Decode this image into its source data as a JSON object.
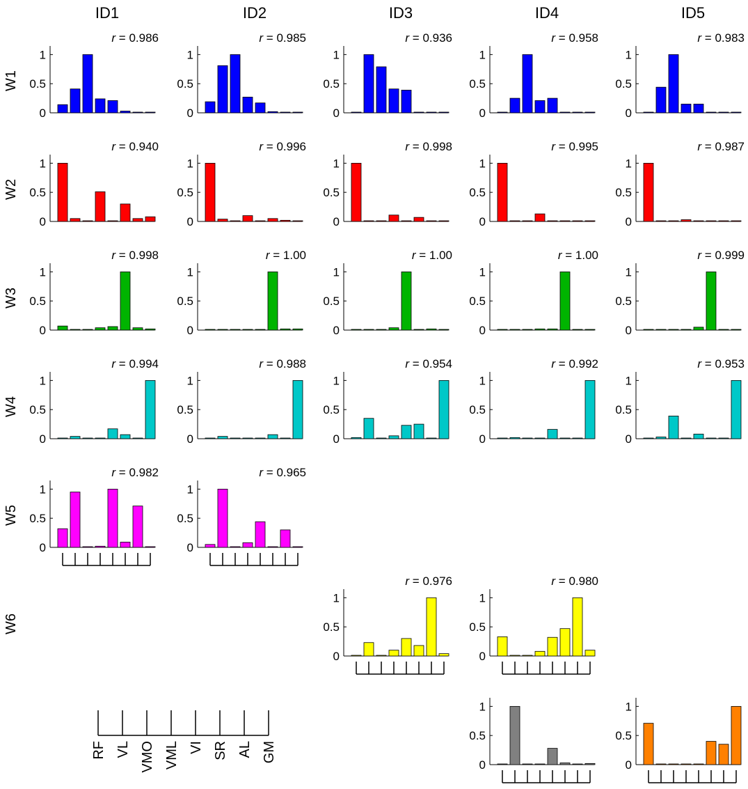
{
  "chart_data": {
    "type": "bar",
    "title": "",
    "column_labels": [
      "ID1",
      "ID2",
      "ID3",
      "ID4",
      "ID5"
    ],
    "row_labels": [
      "W1",
      "W2",
      "W3",
      "W4",
      "W5",
      "W6"
    ],
    "muscles": [
      "RF",
      "VL",
      "VMO",
      "VML",
      "VI",
      "SR",
      "AL",
      "GM"
    ],
    "r_prefix": "r",
    "ylim": [
      0,
      1.1
    ],
    "yticks": [
      "0",
      "0.5",
      "1"
    ],
    "panels": [
      {
        "row": 1,
        "col": 1,
        "r": "0.986",
        "color": "#0000ff",
        "values": [
          0.14,
          0.41,
          1.0,
          0.24,
          0.21,
          0.03,
          0.01,
          0.01
        ]
      },
      {
        "row": 1,
        "col": 2,
        "r": "0.985",
        "color": "#0000ff",
        "values": [
          0.19,
          0.81,
          1.0,
          0.27,
          0.17,
          0.02,
          0.01,
          0.01
        ]
      },
      {
        "row": 1,
        "col": 3,
        "r": "0.936",
        "color": "#0000ff",
        "values": [
          0.0,
          1.0,
          0.79,
          0.41,
          0.39,
          0.01,
          0.01,
          0.01
        ]
      },
      {
        "row": 1,
        "col": 4,
        "r": "0.958",
        "color": "#0000ff",
        "values": [
          0.01,
          0.25,
          1.0,
          0.21,
          0.25,
          0.0,
          0.0,
          0.0
        ]
      },
      {
        "row": 1,
        "col": 5,
        "r": "0.983",
        "color": "#0000ff",
        "values": [
          0.0,
          0.44,
          1.0,
          0.15,
          0.15,
          0.0,
          0.0,
          0.0
        ]
      },
      {
        "row": 2,
        "col": 1,
        "r": "0.940",
        "color": "#ff0000",
        "values": [
          1.0,
          0.05,
          0.0,
          0.51,
          0.0,
          0.3,
          0.05,
          0.08
        ]
      },
      {
        "row": 2,
        "col": 2,
        "r": "0.996",
        "color": "#ff0000",
        "values": [
          1.0,
          0.04,
          0.0,
          0.1,
          0.0,
          0.05,
          0.02,
          0.0
        ]
      },
      {
        "row": 2,
        "col": 3,
        "r": "0.998",
        "color": "#ff0000",
        "values": [
          1.0,
          0.01,
          0.0,
          0.11,
          0.0,
          0.07,
          0.0,
          0.0
        ]
      },
      {
        "row": 2,
        "col": 4,
        "r": "0.995",
        "color": "#ff0000",
        "values": [
          1.0,
          0.01,
          0.0,
          0.13,
          0.01,
          0.0,
          0.0,
          0.0
        ]
      },
      {
        "row": 2,
        "col": 5,
        "r": "0.987",
        "color": "#ff0000",
        "values": [
          1.0,
          0.0,
          0.0,
          0.03,
          0.01,
          0.0,
          0.0,
          0.0
        ]
      },
      {
        "row": 3,
        "col": 1,
        "r": "0.998",
        "color": "#00b400",
        "values": [
          0.07,
          0.0,
          0.01,
          0.04,
          0.06,
          1.0,
          0.04,
          0.02
        ]
      },
      {
        "row": 3,
        "col": 2,
        "r": "1.00",
        "color": "#00b400",
        "values": [
          0.01,
          0.0,
          0.01,
          0.01,
          0.01,
          1.0,
          0.02,
          0.02
        ]
      },
      {
        "row": 3,
        "col": 3,
        "r": "1.00",
        "color": "#00b400",
        "values": [
          0.01,
          0.0,
          0.0,
          0.04,
          1.0,
          0.0,
          0.02,
          0.0
        ]
      },
      {
        "row": 3,
        "col": 4,
        "r": "1.00",
        "color": "#00b400",
        "values": [
          0.01,
          0.0,
          0.0,
          0.02,
          0.02,
          1.0,
          0.0,
          0.01
        ]
      },
      {
        "row": 3,
        "col": 5,
        "r": "0.999",
        "color": "#00b400",
        "values": [
          0.0,
          0.0,
          0.0,
          0.0,
          0.05,
          1.0,
          0.0,
          0.0
        ]
      },
      {
        "row": 4,
        "col": 1,
        "r": "0.994",
        "color": "#00c8c8",
        "values": [
          0.0,
          0.04,
          0.0,
          0.01,
          0.17,
          0.07,
          0.0,
          1.0
        ]
      },
      {
        "row": 4,
        "col": 2,
        "r": "0.988",
        "color": "#00c8c8",
        "values": [
          0.0,
          0.04,
          0.01,
          0.0,
          0.0,
          0.07,
          0.0,
          1.0
        ]
      },
      {
        "row": 4,
        "col": 3,
        "r": "0.954",
        "color": "#00c8c8",
        "values": [
          0.02,
          0.35,
          0.0,
          0.05,
          0.23,
          0.25,
          0.01,
          1.0
        ]
      },
      {
        "row": 4,
        "col": 4,
        "r": "0.992",
        "color": "#00c8c8",
        "values": [
          0.0,
          0.02,
          0.01,
          0.0,
          0.16,
          0.01,
          0.01,
          1.0
        ]
      },
      {
        "row": 4,
        "col": 5,
        "r": "0.953",
        "color": "#00c8c8",
        "values": [
          0.0,
          0.03,
          0.39,
          0.0,
          0.08,
          0.0,
          0.0,
          1.0
        ]
      },
      {
        "row": 5,
        "col": 1,
        "r": "0.982",
        "color": "#ff00ff",
        "values": [
          0.32,
          0.95,
          0.01,
          0.02,
          1.0,
          0.09,
          0.71,
          0.01
        ]
      },
      {
        "row": 5,
        "col": 2,
        "r": "0.965",
        "color": "#ff00ff",
        "values": [
          0.05,
          1.0,
          0.01,
          0.08,
          0.44,
          0.0,
          0.3,
          0.01
        ]
      },
      {
        "row": 6,
        "col": 3,
        "r": "0.976",
        "color": "#ffff00",
        "values": [
          0.0,
          0.23,
          0.01,
          0.1,
          0.3,
          0.18,
          1.0,
          0.04
        ]
      },
      {
        "row": 6,
        "col": 4,
        "r": "0.980",
        "color": "#ffff00",
        "values": [
          0.33,
          0.0,
          0.0,
          0.08,
          0.32,
          0.47,
          1.0,
          0.1
        ]
      },
      {
        "row": 7,
        "col": 4,
        "r": "",
        "color": "#808080",
        "values": [
          0.01,
          1.0,
          0.0,
          0.01,
          0.28,
          0.03,
          0.01,
          0.02
        ]
      },
      {
        "row": 7,
        "col": 5,
        "r": "",
        "color": "#ff8000",
        "values": [
          0.71,
          0.01,
          0.0,
          0.0,
          0.0,
          0.4,
          0.35,
          1.0
        ]
      }
    ],
    "muscle_axis_panels": [
      [
        5,
        1
      ],
      [
        5,
        2
      ],
      [
        6,
        3
      ],
      [
        6,
        4
      ],
      [
        7,
        4
      ],
      [
        7,
        5
      ]
    ]
  }
}
